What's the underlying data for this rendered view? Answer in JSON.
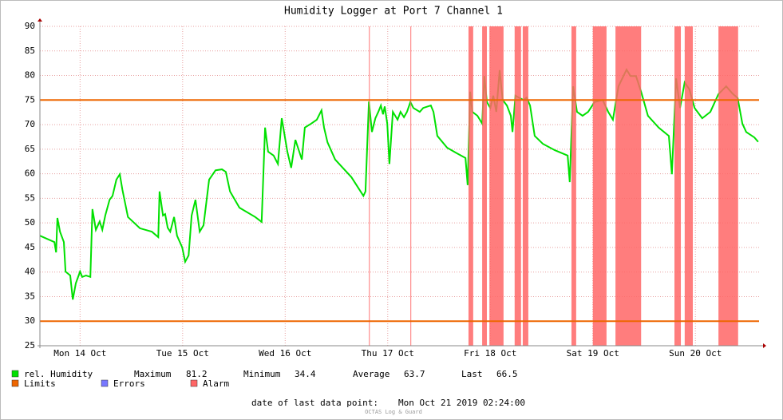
{
  "chart_data": {
    "type": "line",
    "title": "Humidity Logger at Port 7 Channel 1",
    "x": [
      2.6,
      6.0,
      6.4,
      6.7,
      7.3,
      8.2,
      8.6,
      9.7,
      10.3,
      11.0,
      12.0,
      12.5,
      13.4,
      14.4,
      14.9,
      15.7,
      16.6,
      17.2,
      17.9,
      18.9,
      19.6,
      20.5,
      21.3,
      21.9,
      23.2,
      26.0,
      28.8,
      30.3,
      30.6,
      31.4,
      31.9,
      32.5,
      33.1,
      34.0,
      34.7,
      35.9,
      36.6,
      37.4,
      38.1,
      39.0,
      40.0,
      40.9,
      42.2,
      43.7,
      45.2,
      46.1,
      47.1,
      49.3,
      53.0,
      54.5,
      55.3,
      56.0,
      57.3,
      58.3,
      59.2,
      60.5,
      61.4,
      62.4,
      63.9,
      64.6,
      66.1,
      67.4,
      68.5,
      69.1,
      69.9,
      71.7,
      75.5,
      78.3,
      78.8,
      79.6,
      80.3,
      81.1,
      81.8,
      82.4,
      82.9,
      83.3,
      83.9,
      84.4,
      85.2,
      86.3,
      87.0,
      87.8,
      88.5,
      89.3,
      90.0,
      91.5,
      92.3,
      94.1,
      94.7,
      95.6,
      97.9,
      100.1,
      102.2,
      102.7,
      103.3,
      103.8,
      105.0,
      106.1,
      106.6,
      107.2,
      108.0,
      108.7,
      109.4,
      110.2,
      110.9,
      111.9,
      112.8,
      113.2,
      113.9,
      114.7,
      115.8,
      116.5,
      117.3,
      118.4,
      120.3,
      123.1,
      126.1,
      126.6,
      127.4,
      128.3,
      129.6,
      130.9,
      132.4,
      134.3,
      135.6,
      136.7,
      138.0,
      139.9,
      140.8,
      142.1,
      143.3,
      144.9,
      147.4,
      149.8,
      150.5,
      151.5,
      152.4,
      153.5,
      154.6,
      155.8,
      157.6,
      159.5,
      161.4,
      163.2,
      164.7,
      165.9,
      167.0,
      167.9,
      169.8,
      170.7
    ],
    "series": [
      {
        "name": "rel. Humidity",
        "color": "#00e000",
        "values": [
          47.4,
          46.1,
          44.0,
          51.0,
          48.2,
          46.1,
          40.1,
          39.3,
          34.4,
          37.7,
          40.1,
          39.0,
          39.3,
          39.0,
          52.8,
          48.6,
          50.3,
          48.6,
          51.5,
          54.7,
          55.5,
          58.8,
          59.9,
          56.8,
          51.2,
          48.9,
          48.2,
          47.1,
          56.4,
          51.5,
          51.8,
          49.0,
          48.2,
          51.2,
          47.4,
          45.0,
          42.1,
          43.4,
          51.5,
          54.7,
          48.2,
          49.5,
          58.8,
          60.7,
          60.9,
          60.4,
          56.4,
          53.1,
          51.2,
          50.2,
          69.4,
          64.5,
          63.7,
          62.0,
          71.3,
          64.5,
          61.2,
          66.9,
          62.9,
          69.4,
          70.2,
          71.0,
          72.9,
          69.4,
          66.4,
          62.9,
          59.3,
          55.5,
          56.4,
          74.7,
          68.5,
          71.3,
          72.6,
          73.9,
          72.1,
          73.7,
          70.2,
          62.0,
          72.6,
          71.0,
          72.6,
          71.5,
          72.6,
          74.6,
          73.4,
          72.6,
          73.4,
          73.9,
          72.6,
          67.7,
          65.3,
          64.2,
          63.2,
          57.7,
          76.7,
          72.6,
          71.8,
          70.2,
          79.9,
          74.6,
          73.4,
          75.9,
          72.6,
          81.1,
          75.0,
          73.9,
          71.8,
          68.5,
          75.9,
          75.5,
          75.0,
          75.5,
          73.9,
          67.7,
          66.1,
          64.8,
          63.7,
          58.3,
          77.8,
          72.6,
          71.8,
          72.6,
          74.6,
          75.0,
          72.6,
          71.0,
          77.8,
          81.2,
          79.9,
          79.9,
          76.7,
          71.8,
          69.4,
          67.7,
          59.9,
          79.4,
          73.4,
          78.6,
          77.2,
          73.4,
          71.3,
          72.6,
          76.2,
          77.8,
          76.3,
          75.4,
          70.2,
          68.5,
          67.4,
          66.5
        ]
      }
    ],
    "limits": {
      "name": "Limits",
      "color": "#ee6600",
      "values": [
        75,
        30
      ]
    },
    "errors": {
      "name": "Errors",
      "color": "#7777ff"
    },
    "alarm": {
      "name": "Alarm",
      "color": "#ff6666",
      "ranges": [
        [
          79.6,
          79.8
        ],
        [
          89.3,
          89.5
        ],
        [
          102.9,
          104.0
        ],
        [
          106.1,
          107.2
        ],
        [
          107.8,
          111.1
        ],
        [
          113.7,
          115.2
        ],
        [
          115.6,
          116.9
        ],
        [
          127.0,
          128.1
        ],
        [
          132.0,
          135.2
        ],
        [
          137.3,
          143.3
        ],
        [
          151.1,
          152.6
        ],
        [
          153.5,
          155.4
        ],
        [
          161.4,
          166.0
        ]
      ]
    },
    "xlim": [
      2.6,
      170.9
    ],
    "xticks": [
      {
        "value": 12,
        "label": "Mon 14 Oct"
      },
      {
        "value": 36,
        "label": "Tue 15 Oct"
      },
      {
        "value": 60,
        "label": "Wed 16 Oct"
      },
      {
        "value": 84,
        "label": "Thu 17 Oct"
      },
      {
        "value": 108,
        "label": "Fri 18 Oct"
      },
      {
        "value": 132,
        "label": "Sat 19 Oct"
      },
      {
        "value": 156,
        "label": "Sun 20 Oct"
      }
    ],
    "ylim": [
      25,
      90
    ],
    "yticks": [
      25,
      30,
      35,
      40,
      45,
      50,
      55,
      60,
      65,
      70,
      75,
      80,
      85,
      90
    ],
    "grid": true,
    "stats": [
      {
        "label": "Maximum",
        "value": 81.2
      },
      {
        "label": "Minimum",
        "value": 34.4
      },
      {
        "label": "Average",
        "value": 63.7
      },
      {
        "label": "Last",
        "value": 66.5
      }
    ],
    "footer": {
      "label": "date of last data point:",
      "value": "Mon Oct 21 2019 02:24:00"
    },
    "watermark": "OCTAS Log & Guard"
  }
}
